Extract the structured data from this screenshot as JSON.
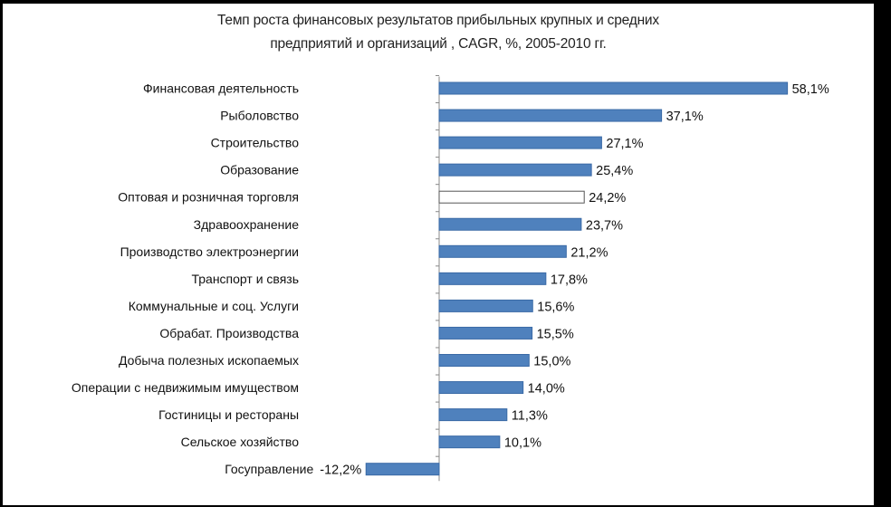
{
  "colors": {
    "background": "#000000",
    "panel": "#ffffff",
    "bar": "#4f81bd",
    "bar_outline": "#3a6aa6",
    "highlight_fill": "#ffffff",
    "highlight_outline": "#555555",
    "axis": "#888888",
    "text": "#111111"
  },
  "chart_data": {
    "type": "bar",
    "orientation": "horizontal",
    "title": "Темп роста финансовых результатов прибыльных крупных и средних предприятий и организаций , CAGR, %, 2005-2010 гг.",
    "title_lines": [
      "Темп роста финансовых  результатов прибыльных крупных и средних",
      "предприятий и организаций , CAGR, %, 2005-2010 гг."
    ],
    "xlabel": "",
    "ylabel": "",
    "grid": false,
    "legend": "none",
    "xlim": [
      -12.2,
      58.1
    ],
    "categories": [
      "Финансовая деятельность",
      "Рыболовство",
      "Строительство",
      "Образование",
      "Оптовая и розничная торговля",
      "Здравоохранение",
      "Производство электроэнергии",
      "Транспорт и связь",
      "Коммунальные  и соц. Услуги",
      "Обрабат. Производства",
      "Добыча полезных ископаемых",
      "Операции с недвижимым  имуществом",
      "Гостиницы и рестораны",
      "Сельское хозяйство",
      "Госуправление"
    ],
    "values": [
      58.1,
      37.1,
      27.1,
      25.4,
      24.2,
      23.7,
      21.2,
      17.8,
      15.6,
      15.5,
      15.0,
      14.0,
      11.3,
      10.1,
      -12.2
    ],
    "value_labels": [
      "58,1%",
      "37,1%",
      "27,1%",
      "25,4%",
      "24,2%",
      "23,7%",
      "21,2%",
      "17,8%",
      "15,6%",
      "15,5%",
      "15,0%",
      "14,0%",
      "11,3%",
      "10,1%",
      "-12,2%"
    ],
    "highlighted": [
      "Оптовая и розничная торговля"
    ]
  }
}
